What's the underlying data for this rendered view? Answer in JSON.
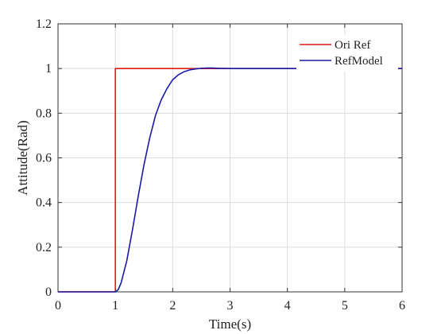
{
  "chart_data": {
    "type": "line",
    "xlabel": "Time(s)",
    "ylabel": "Attitude(Rad)",
    "xlim": [
      0,
      6
    ],
    "ylim": [
      0,
      1.2
    ],
    "xticks": [
      0,
      1,
      2,
      3,
      4,
      5,
      6
    ],
    "yticks": [
      0,
      0.2,
      0.4,
      0.6,
      0.8,
      1,
      1.2
    ],
    "xtick_labels": [
      "0",
      "1",
      "2",
      "3",
      "4",
      "5",
      "6"
    ],
    "ytick_labels": [
      "0",
      "0.2",
      "0.4",
      "0.6",
      "0.8",
      "1",
      "1.2"
    ],
    "grid": true,
    "legend_position": "top-right",
    "series": [
      {
        "name": "Ori Ref",
        "color": "#e01b1b",
        "x": [
          0,
          1,
          1,
          6
        ],
        "y": [
          0,
          0,
          1,
          1
        ]
      },
      {
        "name": "RefModel",
        "color": "#1a1aa6",
        "x": [
          0,
          1,
          1.05,
          1.1,
          1.2,
          1.3,
          1.4,
          1.5,
          1.6,
          1.7,
          1.8,
          1.9,
          2.0,
          2.1,
          2.2,
          2.3,
          2.4,
          2.5,
          2.6,
          2.7,
          2.8,
          3.0,
          3.5,
          4.0,
          6.0
        ],
        "y": [
          0,
          0,
          0.01,
          0.04,
          0.14,
          0.28,
          0.43,
          0.57,
          0.69,
          0.79,
          0.86,
          0.91,
          0.95,
          0.972,
          0.986,
          0.994,
          0.998,
          1.001,
          1.002,
          1.002,
          1.001,
          1.0,
          1.0,
          1.0,
          1.0
        ]
      }
    ]
  }
}
